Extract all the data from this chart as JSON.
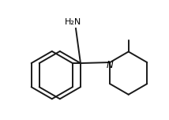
{
  "background": "#ffffff",
  "line_color": "#1a1a1a",
  "line_width": 1.4,
  "label_NH2": "H₂N",
  "label_N": "N",
  "figsize": [
    2.14,
    1.52
  ],
  "dpi": 100,
  "xlim": [
    0.0,
    10.5
  ],
  "ylim": [
    0.5,
    7.5
  ]
}
